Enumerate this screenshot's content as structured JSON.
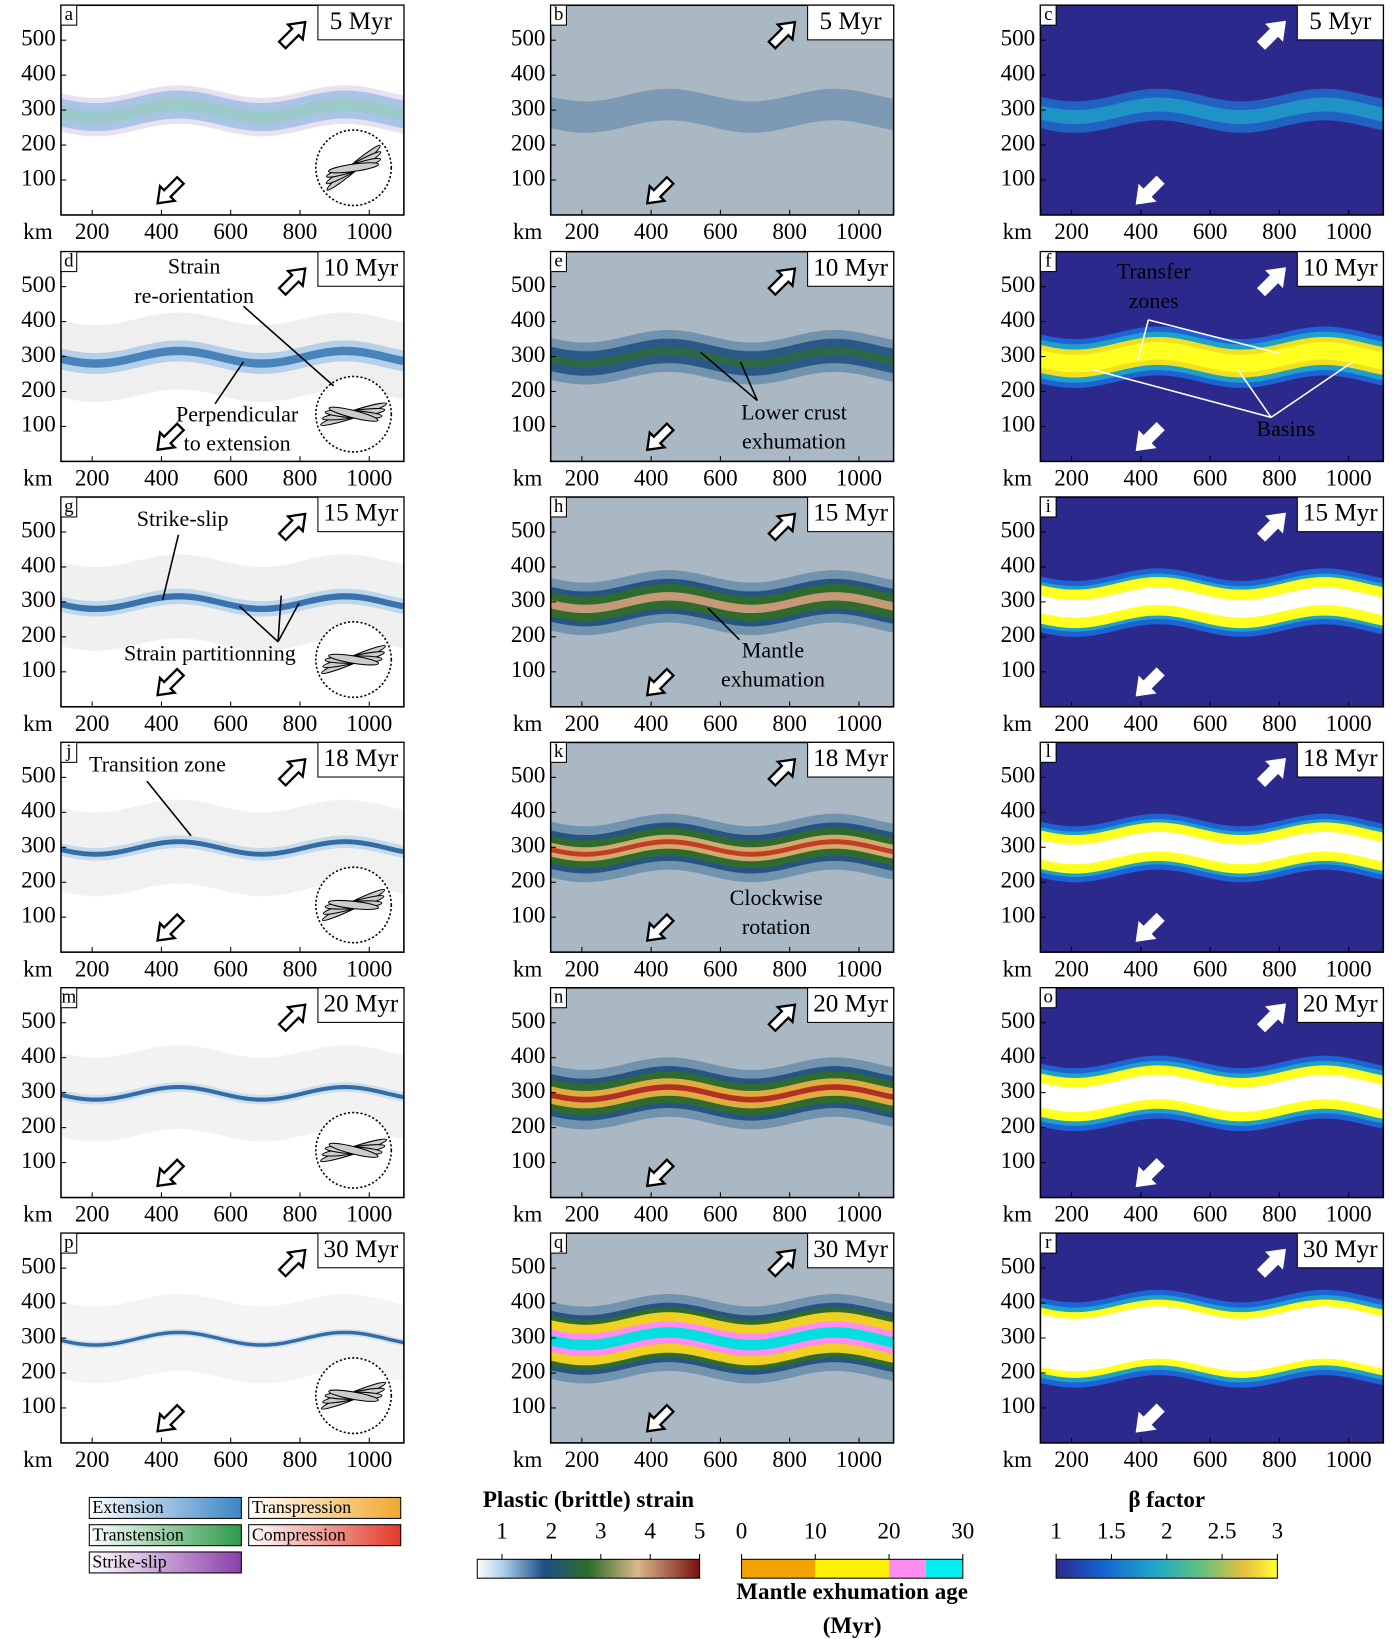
{
  "axes": {
    "xlim": [
      110,
      1100
    ],
    "ylim": [
      0,
      600
    ],
    "xticks": [
      200,
      400,
      600,
      800,
      1000
    ],
    "yticks": [
      100,
      200,
      300,
      400,
      500
    ],
    "x_unit": "km"
  },
  "panels": [
    {
      "letter": "a",
      "time": "5 Myr"
    },
    {
      "letter": "b",
      "time": "5 Myr"
    },
    {
      "letter": "c",
      "time": "5 Myr"
    },
    {
      "letter": "d",
      "time": "10 Myr",
      "annotations": [
        [
          "Strain",
          "re-orientation"
        ],
        [
          "Perpendicular",
          "to extension"
        ]
      ]
    },
    {
      "letter": "e",
      "time": "10 Myr",
      "annotations": [
        [
          "Lower crust",
          "exhumation"
        ]
      ]
    },
    {
      "letter": "f",
      "time": "10 Myr",
      "annotations": [
        [
          "Transfer",
          "zones"
        ],
        [
          "Basins"
        ]
      ]
    },
    {
      "letter": "g",
      "time": "15 Myr",
      "annotations": [
        [
          "Strike-slip"
        ],
        [
          "Strain partitionning"
        ]
      ]
    },
    {
      "letter": "h",
      "time": "15 Myr",
      "annotations": [
        [
          "Mantle",
          "exhumation"
        ]
      ]
    },
    {
      "letter": "i",
      "time": "15 Myr"
    },
    {
      "letter": "j",
      "time": "18 Myr",
      "annotations": [
        [
          "Transition zone"
        ]
      ]
    },
    {
      "letter": "k",
      "time": "18 Myr",
      "annotations": [
        [
          "Clockwise",
          "rotation"
        ]
      ]
    },
    {
      "letter": "l",
      "time": "18 Myr"
    },
    {
      "letter": "m",
      "time": "20 Myr"
    },
    {
      "letter": "n",
      "time": "20 Myr"
    },
    {
      "letter": "o",
      "time": "20 Myr"
    },
    {
      "letter": "p",
      "time": "30 Myr"
    },
    {
      "letter": "q",
      "time": "30 Myr"
    },
    {
      "letter": "r",
      "time": "30 Myr"
    }
  ],
  "legend": [
    {
      "name": "Extension",
      "color": "#3d86c6"
    },
    {
      "name": "Transtension",
      "color": "#2e9a4a"
    },
    {
      "name": "Strike-slip",
      "color": "#8a3fa8"
    },
    {
      "name": "Transpression",
      "color": "#f0a830"
    },
    {
      "name": "Compression",
      "color": "#e23a2a"
    }
  ],
  "colorbars": [
    {
      "title": "Plastic (brittle) strain",
      "lim": [
        0.5,
        5
      ],
      "ticks": [
        1,
        2,
        3,
        4,
        5
      ]
    },
    {
      "title": [
        "Mantle exhumation age",
        "(Myr)"
      ],
      "lim": [
        0,
        30
      ],
      "ticks": [
        0,
        10,
        20,
        30
      ],
      "bounds": [
        0,
        10,
        20,
        25,
        30
      ],
      "colors": [
        "#f5a300",
        "#fff200",
        "#ff8cf0",
        "#00f0f0"
      ]
    },
    {
      "title": "β factor",
      "lim": [
        1,
        3
      ],
      "ticks": [
        1,
        1.5,
        2,
        2.5,
        3
      ]
    }
  ]
}
